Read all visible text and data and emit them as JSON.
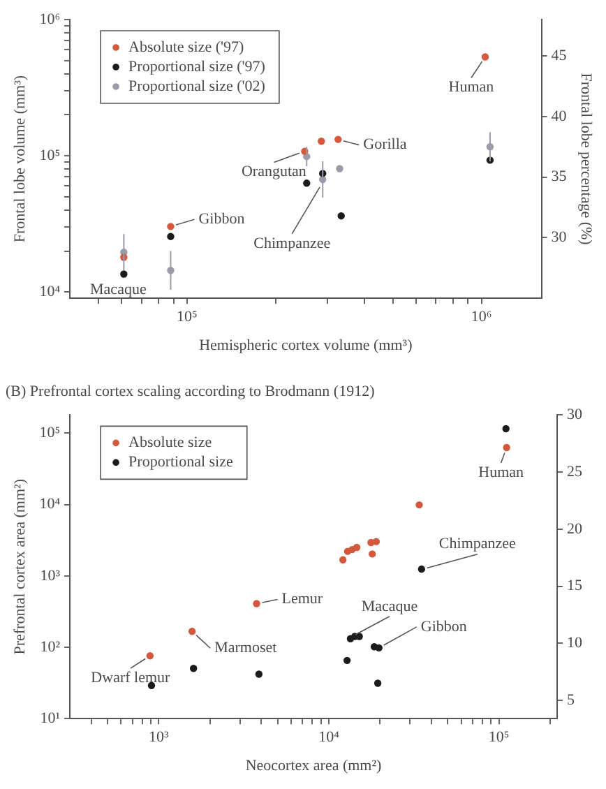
{
  "chart_data": [
    {
      "type": "scatter",
      "xlabel": "Hemispheric cortex volume (mm³)",
      "ylabel": "Frontal lobe volume (mm³)",
      "y2label": "Frontal lobe percentage (%)",
      "log": "xy",
      "grid": false,
      "legend": "top left",
      "marker": "circle",
      "xlim": [
        40000,
        1600000
      ],
      "xticks": [
        {
          "value": 50000,
          "label": null
        },
        {
          "value": 60000,
          "label": null
        },
        {
          "value": 70000,
          "label": null
        },
        {
          "value": 80000,
          "label": null
        },
        {
          "value": 90000,
          "label": null
        },
        {
          "value": 100000,
          "label": "10⁵"
        },
        {
          "value": 200000,
          "label": null
        },
        {
          "value": 300000,
          "label": null
        },
        {
          "value": 400000,
          "label": null
        },
        {
          "value": 500000,
          "label": null
        },
        {
          "value": 600000,
          "label": null
        },
        {
          "value": 700000,
          "label": null
        },
        {
          "value": 800000,
          "label": null
        },
        {
          "value": 900000,
          "label": null
        },
        {
          "value": 1000000,
          "label": "10⁶"
        }
      ],
      "ylim": [
        9000,
        1000000
      ],
      "yticks": [
        {
          "value": 10000,
          "label": "10⁴"
        },
        {
          "value": 20000,
          "label": null
        },
        {
          "value": 30000,
          "label": null
        },
        {
          "value": 40000,
          "label": null
        },
        {
          "value": 50000,
          "label": null
        },
        {
          "value": 60000,
          "label": null
        },
        {
          "value": 70000,
          "label": null
        },
        {
          "value": 80000,
          "label": null
        },
        {
          "value": 90000,
          "label": null
        },
        {
          "value": 100000,
          "label": "10⁵"
        },
        {
          "value": 200000,
          "label": null
        },
        {
          "value": 300000,
          "label": null
        },
        {
          "value": 400000,
          "label": null
        },
        {
          "value": 500000,
          "label": null
        },
        {
          "value": 600000,
          "label": null
        },
        {
          "value": 700000,
          "label": null
        },
        {
          "value": 800000,
          "label": null
        },
        {
          "value": 900000,
          "label": null
        },
        {
          "value": 1000000,
          "label": "10⁶"
        }
      ],
      "y2lim": [
        25,
        48
      ],
      "y2ticks": [
        30,
        35,
        40,
        45
      ],
      "series": [
        {
          "name": "Absolute size ('97)",
          "color": "#d4583c",
          "x": [
            61000,
            88000,
            251000,
            286000,
            326000,
            1030000
          ],
          "values": [
            18000,
            30300,
            108000,
            128000,
            132000,
            532000
          ]
        },
        {
          "name": "Proportional size ('97)",
          "color": "#1c1c1e",
          "axis": "y2",
          "x": [
            61000,
            88000,
            255000,
            289000,
            334000,
            1070000
          ],
          "values": [
            27.0,
            30.1,
            34.5,
            35.3,
            31.8,
            36.4
          ]
        },
        {
          "name": "Proportional size ('02)",
          "color": "#9a9caa",
          "axis": "y2",
          "x": [
            61000,
            88000,
            255000,
            289000,
            330000,
            1070000
          ],
          "values": [
            28.8,
            27.3,
            36.7,
            34.8,
            35.7,
            37.5
          ],
          "errors": [
            1.5,
            1.6,
            0.8,
            1.5,
            null,
            1.2
          ]
        }
      ],
      "annotations": [
        {
          "text": "Macaque",
          "x": 61000,
          "y": 12800
        },
        {
          "text": "Gibbon",
          "x": 88000,
          "y": 30300
        },
        {
          "text": "Orangutan",
          "x": 251000,
          "y": 108000
        },
        {
          "text": "Gorilla",
          "x": 326000,
          "y": 132000
        },
        {
          "text": "Chimpanzee",
          "x": 289000,
          "y": 64000
        },
        {
          "text": "Human",
          "x": 1030000,
          "y": 532000
        }
      ]
    },
    {
      "type": "scatter",
      "title": "(B) Prefrontal cortex scaling according to Brodmann (1912)",
      "xlabel": "Neocortex area (mm²)",
      "ylabel": "Prefrontal cortex area (mm²)",
      "log": "xy",
      "grid": false,
      "legend": "top left",
      "marker": "circle",
      "xlim": [
        300,
        220000
      ],
      "xticks": [
        {
          "value": 400,
          "label": null
        },
        {
          "value": 500,
          "label": null
        },
        {
          "value": 600,
          "label": null
        },
        {
          "value": 700,
          "label": null
        },
        {
          "value": 800,
          "label": null
        },
        {
          "value": 900,
          "label": null
        },
        {
          "value": 1000,
          "label": "10³"
        },
        {
          "value": 2000,
          "label": null
        },
        {
          "value": 3000,
          "label": null
        },
        {
          "value": 4000,
          "label": null
        },
        {
          "value": 5000,
          "label": null
        },
        {
          "value": 6000,
          "label": null
        },
        {
          "value": 7000,
          "label": null
        },
        {
          "value": 8000,
          "label": null
        },
        {
          "value": 9000,
          "label": null
        },
        {
          "value": 10000,
          "label": "10⁴"
        },
        {
          "value": 20000,
          "label": null
        },
        {
          "value": 30000,
          "label": null
        },
        {
          "value": 40000,
          "label": null
        },
        {
          "value": 50000,
          "label": null
        },
        {
          "value": 60000,
          "label": null
        },
        {
          "value": 70000,
          "label": null
        },
        {
          "value": 80000,
          "label": null
        },
        {
          "value": 90000,
          "label": null
        },
        {
          "value": 100000,
          "label": "10⁵"
        },
        {
          "value": 200000,
          "label": null
        }
      ],
      "ylim": [
        10,
        180000
      ],
      "yticks": [
        {
          "value": 10,
          "label": "10¹"
        },
        {
          "value": 100,
          "label": "10²"
        },
        {
          "value": 1000,
          "label": "10³"
        },
        {
          "value": 10000,
          "label": "10⁴"
        },
        {
          "value": 100000,
          "label": "10⁵"
        }
      ],
      "y2lim": [
        3.4,
        30
      ],
      "y2ticks": [
        5,
        10,
        15,
        20,
        25,
        30
      ],
      "series": [
        {
          "name": "Absolute size",
          "color": "#d4583c",
          "x": [
            888,
            1570,
            3760,
            12100,
            12900,
            13700,
            14600,
            17700,
            19000,
            18000,
            34000,
            111000
          ],
          "values": [
            76,
            167,
            409,
            1680,
            2210,
            2340,
            2510,
            2940,
            3030,
            2030,
            9900,
            63000
          ]
        },
        {
          "name": "Proportional size",
          "color": "#1c1c1e",
          "axis": "y2",
          "x": [
            906,
            1600,
            3880,
            12800,
            13400,
            14200,
            15100,
            18500,
            19700,
            19400,
            35100,
            110000
          ],
          "values": [
            6.3,
            7.8,
            7.3,
            8.5,
            10.4,
            10.6,
            10.6,
            9.7,
            9.6,
            6.5,
            16.5,
            28.8
          ]
        }
      ],
      "annotations": [
        {
          "text": "Dwarf lemur",
          "x": 888,
          "y": 76
        },
        {
          "text": "Marmoset",
          "x": 1570,
          "y": 167
        },
        {
          "text": "Lemur",
          "x": 3760,
          "y": 409
        },
        {
          "text": "Macaque",
          "x": 13400,
          "y": 138
        },
        {
          "text": "Gibbon",
          "x": 19700,
          "y": 98
        },
        {
          "text": "Chimpanzee",
          "x": 35100,
          "y": 1230
        },
        {
          "text": "Human",
          "x": 111000,
          "y": 63000
        }
      ]
    }
  ]
}
